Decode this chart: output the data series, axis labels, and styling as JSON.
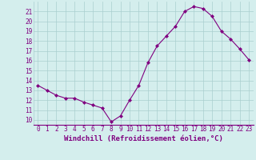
{
  "x": [
    0,
    1,
    2,
    3,
    4,
    5,
    6,
    7,
    8,
    9,
    10,
    11,
    12,
    13,
    14,
    15,
    16,
    17,
    18,
    19,
    20,
    21,
    22,
    23
  ],
  "y": [
    13.5,
    13.0,
    12.5,
    12.2,
    12.2,
    11.8,
    11.5,
    11.2,
    9.8,
    10.4,
    12.0,
    13.5,
    15.8,
    17.5,
    18.5,
    19.5,
    21.0,
    21.5,
    21.3,
    20.5,
    19.0,
    18.2,
    17.2,
    16.1
  ],
  "line_color": "#800080",
  "marker": "D",
  "marker_size": 2.0,
  "bg_color": "#d4eeed",
  "grid_color": "#aacfcf",
  "xlabel": "Windchill (Refroidissement éolien,°C)",
  "xlabel_color": "#800080",
  "xlabel_fontsize": 6.5,
  "tick_color": "#800080",
  "tick_fontsize": 5.5,
  "ylim": [
    9.5,
    22.0
  ],
  "xlim": [
    -0.5,
    23.5
  ],
  "yticks": [
    10,
    11,
    12,
    13,
    14,
    15,
    16,
    17,
    18,
    19,
    20,
    21
  ],
  "xticks": [
    0,
    1,
    2,
    3,
    4,
    5,
    6,
    7,
    8,
    9,
    10,
    11,
    12,
    13,
    14,
    15,
    16,
    17,
    18,
    19,
    20,
    21,
    22,
    23
  ]
}
